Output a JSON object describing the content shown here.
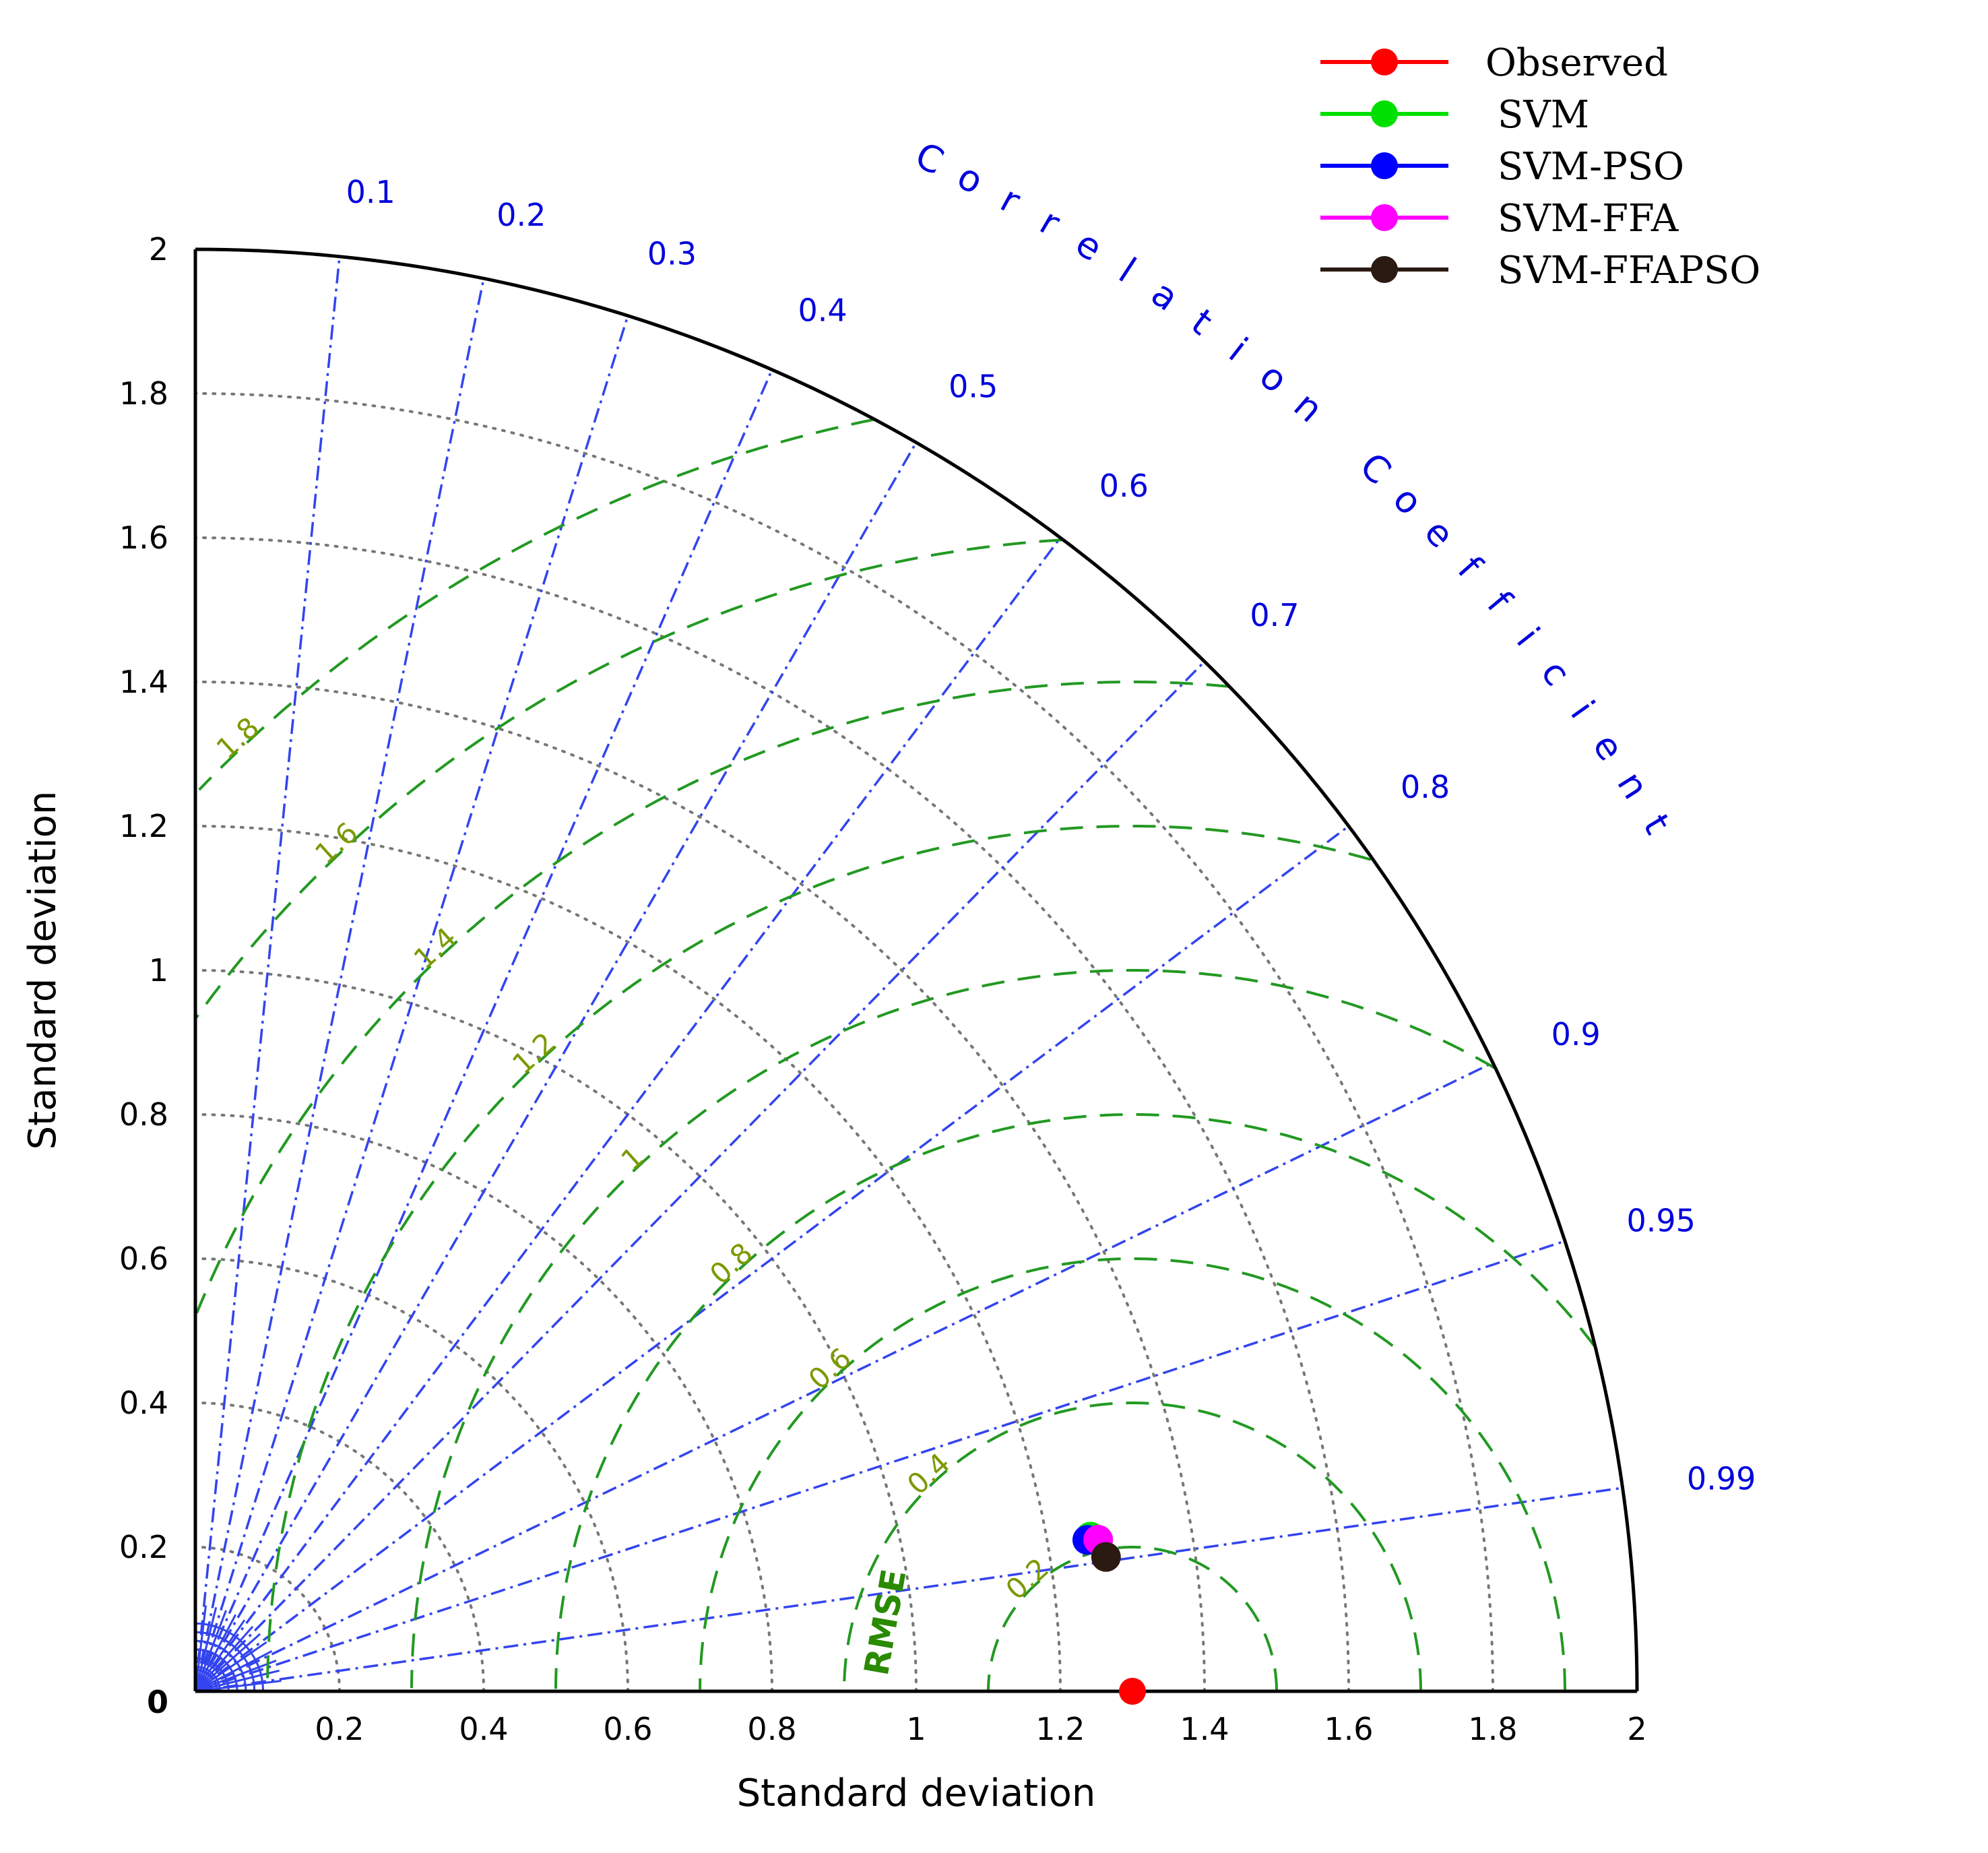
{
  "chart_data": {
    "type": "taylor-diagram",
    "xlabel": "Standard deviation",
    "ylabel": "Standard deviation",
    "std_range": [
      0,
      2
    ],
    "std_ticks": [
      0.2,
      0.4,
      0.6,
      0.8,
      1,
      1.2,
      1.4,
      1.6,
      1.8,
      2
    ],
    "std_tick_labels": [
      "0.2",
      "0.4",
      "0.6",
      "0.8",
      "1",
      "1.2",
      "1.4",
      "1.6",
      "1.8",
      "2"
    ],
    "y_tick_labels": [
      "0.2",
      "0.4",
      "0.6",
      "0.8",
      "1",
      "1.2",
      "1.4",
      "1.6",
      "1.8",
      "2"
    ],
    "origin_label": "0",
    "correlation_title": "Correlation Coefficient",
    "correlation_ticks": [
      0.1,
      0.2,
      0.3,
      0.4,
      0.5,
      0.6,
      0.7,
      0.8,
      0.9,
      0.95,
      0.99
    ],
    "correlation_tick_labels": [
      "0.1",
      "0.2",
      "0.3",
      "0.4",
      "0.5",
      "0.6",
      "0.7",
      "0.8",
      "0.9",
      "0.95",
      "0.99"
    ],
    "rmse_title": "RMSE",
    "rmse_contours": [
      0.2,
      0.4,
      0.6,
      0.8,
      1,
      1.2,
      1.4,
      1.6,
      1.8
    ],
    "rmse_tick_labels": [
      "0.2",
      "0.4",
      "0.6",
      "0.8",
      "1",
      "1.2",
      "1.4",
      "1.6",
      "1.8"
    ],
    "reference": {
      "name": "Observed",
      "std": 1.3,
      "color": "#ff0000"
    },
    "series": [
      {
        "name": "SVM",
        "std": 1.26,
        "correlation": 0.9854,
        "color": "#00e000"
      },
      {
        "name": "SVM-PSO",
        "std": 1.255,
        "correlation": 0.9859,
        "color": "#0000ff"
      },
      {
        "name": "SVM-FFA",
        "std": 1.27,
        "correlation": 0.9862,
        "color": "#ff00ff"
      },
      {
        "name": "SVM-FFAPSO",
        "std": 1.277,
        "correlation": 0.9893,
        "color": "#2a1a12"
      }
    ],
    "legend": {
      "position": "top-right",
      "entries": [
        {
          "label": "Observed",
          "color": "#ff0000"
        },
        {
          "label": "SVM",
          "color": "#00e000"
        },
        {
          "label": "SVM-PSO",
          "color": "#0000ff"
        },
        {
          "label": "SVM-FFA",
          "color": "#ff00ff"
        },
        {
          "label": "SVM-FFAPSO",
          "color": "#2a1a12"
        }
      ]
    },
    "grid": true,
    "colors": {
      "axes": "#000000",
      "std_arcs": "#777777",
      "correlation_lines": "#3344ee",
      "rmse_contours": "#229922"
    }
  }
}
